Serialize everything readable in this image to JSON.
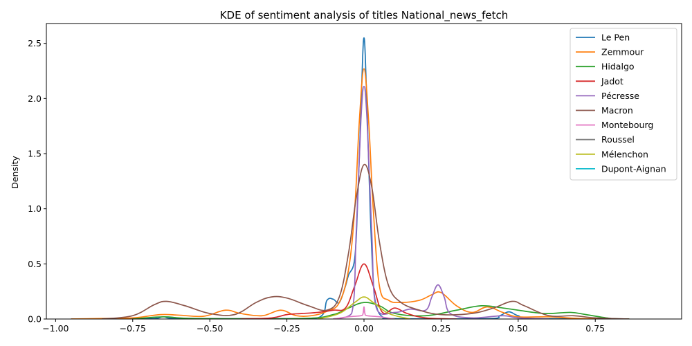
{
  "chart_data": {
    "type": "line",
    "title": "KDE of sentiment analysis of titles National_news_fetch",
    "xlabel": "",
    "ylabel": "Density",
    "xlim": [
      -1.03,
      1.03
    ],
    "ylim": [
      0,
      2.68
    ],
    "x_ticks": [
      -1.0,
      -0.75,
      -0.5,
      -0.25,
      0.0,
      0.25,
      0.5,
      0.75
    ],
    "x_tick_labels": [
      "−1.00",
      "−0.75",
      "−0.50",
      "−0.25",
      "0.00",
      "0.25",
      "0.50",
      "0.75"
    ],
    "y_ticks": [
      0.0,
      0.5,
      1.0,
      1.5,
      2.0,
      2.5
    ],
    "y_tick_labels": [
      "0.0",
      "0.5",
      "1.0",
      "1.5",
      "2.0",
      "2.5"
    ],
    "grid": false,
    "legend_position": "top-right",
    "series": [
      {
        "name": "Le Pen",
        "color": "#1f77b4",
        "points": [
          [
            -0.95,
            0
          ],
          [
            -0.7,
            0.003
          ],
          [
            -0.65,
            0.02
          ],
          [
            -0.6,
            0.005
          ],
          [
            -0.3,
            0.003
          ],
          [
            -0.15,
            0.01
          ],
          [
            -0.12,
            0.17
          ],
          [
            -0.1,
            0.18
          ],
          [
            -0.08,
            0.15
          ],
          [
            -0.06,
            0.3
          ],
          [
            -0.05,
            0.4
          ],
          [
            -0.03,
            0.55
          ],
          [
            -0.02,
            1.1
          ],
          [
            -0.01,
            1.9
          ],
          [
            -0.004,
            2.4
          ],
          [
            0,
            2.55
          ],
          [
            0.004,
            2.4
          ],
          [
            0.01,
            1.9
          ],
          [
            0.02,
            1.0
          ],
          [
            0.03,
            0.35
          ],
          [
            0.04,
            0.12
          ],
          [
            0.06,
            0.02
          ],
          [
            0.1,
            0.003
          ],
          [
            0.4,
            0.003
          ],
          [
            0.44,
            0.03
          ],
          [
            0.47,
            0.065
          ],
          [
            0.5,
            0.03
          ],
          [
            0.55,
            0.005
          ],
          [
            0.86,
            0
          ]
        ]
      },
      {
        "name": "Zemmour",
        "color": "#ff7f0e",
        "points": [
          [
            -0.95,
            0
          ],
          [
            -0.85,
            0.005
          ],
          [
            -0.75,
            0.01
          ],
          [
            -0.66,
            0.04
          ],
          [
            -0.6,
            0.035
          ],
          [
            -0.52,
            0.025
          ],
          [
            -0.45,
            0.08
          ],
          [
            -0.4,
            0.05
          ],
          [
            -0.33,
            0.03
          ],
          [
            -0.27,
            0.08
          ],
          [
            -0.22,
            0.03
          ],
          [
            -0.17,
            0.03
          ],
          [
            -0.12,
            0.07
          ],
          [
            -0.08,
            0.15
          ],
          [
            -0.05,
            0.45
          ],
          [
            -0.03,
            1.0
          ],
          [
            -0.015,
            1.8
          ],
          [
            0,
            2.27
          ],
          [
            0.015,
            1.8
          ],
          [
            0.03,
            1.0
          ],
          [
            0.05,
            0.3
          ],
          [
            0.08,
            0.17
          ],
          [
            0.12,
            0.15
          ],
          [
            0.18,
            0.17
          ],
          [
            0.22,
            0.22
          ],
          [
            0.25,
            0.24
          ],
          [
            0.3,
            0.12
          ],
          [
            0.35,
            0.06
          ],
          [
            0.4,
            0.11
          ],
          [
            0.45,
            0.06
          ],
          [
            0.5,
            0.02
          ],
          [
            0.6,
            0.02
          ],
          [
            0.7,
            0.005
          ],
          [
            0.86,
            0
          ]
        ]
      },
      {
        "name": "Hidalgo",
        "color": "#2ca02c",
        "points": [
          [
            -0.75,
            0
          ],
          [
            -0.65,
            0.02
          ],
          [
            -0.55,
            0.005
          ],
          [
            -0.2,
            0.005
          ],
          [
            -0.1,
            0.04
          ],
          [
            -0.05,
            0.1
          ],
          [
            0,
            0.15
          ],
          [
            0.05,
            0.12
          ],
          [
            0.1,
            0.05
          ],
          [
            0.2,
            0.03
          ],
          [
            0.3,
            0.08
          ],
          [
            0.38,
            0.12
          ],
          [
            0.45,
            0.1
          ],
          [
            0.55,
            0.06
          ],
          [
            0.6,
            0.05
          ],
          [
            0.67,
            0.06
          ],
          [
            0.72,
            0.04
          ],
          [
            0.8,
            0.005
          ],
          [
            0.86,
            0
          ]
        ]
      },
      {
        "name": "Jadot",
        "color": "#d62728",
        "points": [
          [
            -0.4,
            0
          ],
          [
            -0.3,
            0.01
          ],
          [
            -0.25,
            0.04
          ],
          [
            -0.2,
            0.05
          ],
          [
            -0.15,
            0.06
          ],
          [
            -0.1,
            0.08
          ],
          [
            -0.06,
            0.1
          ],
          [
            -0.03,
            0.3
          ],
          [
            0,
            0.5
          ],
          [
            0.03,
            0.3
          ],
          [
            0.06,
            0.06
          ],
          [
            0.1,
            0.1
          ],
          [
            0.14,
            0.05
          ],
          [
            0.2,
            0.01
          ],
          [
            0.3,
            0
          ]
        ]
      },
      {
        "name": "Pécresse",
        "color": "#9467bd",
        "points": [
          [
            -0.1,
            0
          ],
          [
            -0.04,
            0.05
          ],
          [
            -0.025,
            0.8
          ],
          [
            -0.01,
            1.8
          ],
          [
            0,
            2.11
          ],
          [
            0.01,
            1.8
          ],
          [
            0.025,
            0.8
          ],
          [
            0.04,
            0.1
          ],
          [
            0.1,
            0.06
          ],
          [
            0.15,
            0.09
          ],
          [
            0.2,
            0.08
          ],
          [
            0.22,
            0.2
          ],
          [
            0.24,
            0.31
          ],
          [
            0.26,
            0.2
          ],
          [
            0.28,
            0.05
          ],
          [
            0.35,
            0.01
          ],
          [
            0.45,
            0.03
          ],
          [
            0.5,
            0.01
          ],
          [
            0.6,
            0
          ]
        ]
      },
      {
        "name": "Macron",
        "color": "#8c564b",
        "points": [
          [
            -0.85,
            0
          ],
          [
            -0.75,
            0.03
          ],
          [
            -0.68,
            0.13
          ],
          [
            -0.64,
            0.16
          ],
          [
            -0.58,
            0.12
          ],
          [
            -0.5,
            0.05
          ],
          [
            -0.42,
            0.04
          ],
          [
            -0.35,
            0.15
          ],
          [
            -0.3,
            0.2
          ],
          [
            -0.25,
            0.19
          ],
          [
            -0.18,
            0.12
          ],
          [
            -0.12,
            0.08
          ],
          [
            -0.08,
            0.2
          ],
          [
            -0.05,
            0.6
          ],
          [
            -0.025,
            1.1
          ],
          [
            0,
            1.4
          ],
          [
            0.025,
            1.2
          ],
          [
            0.05,
            0.7
          ],
          [
            0.08,
            0.3
          ],
          [
            0.12,
            0.15
          ],
          [
            0.18,
            0.08
          ],
          [
            0.25,
            0.04
          ],
          [
            0.35,
            0.05
          ],
          [
            0.42,
            0.1
          ],
          [
            0.48,
            0.16
          ],
          [
            0.52,
            0.12
          ],
          [
            0.6,
            0.03
          ],
          [
            0.68,
            0.03
          ],
          [
            0.75,
            0.01
          ],
          [
            0.86,
            0
          ]
        ]
      },
      {
        "name": "Montebourg",
        "color": "#e377c2",
        "points": [
          [
            -0.1,
            0
          ],
          [
            -0.05,
            0.02
          ],
          [
            -0.01,
            0.03
          ],
          [
            -0.003,
            0.05
          ],
          [
            0,
            0.11
          ],
          [
            0.003,
            0.05
          ],
          [
            0.01,
            0.03
          ],
          [
            0.05,
            0.02
          ],
          [
            0.1,
            0
          ]
        ]
      },
      {
        "name": "Roussel",
        "color": "#7f7f7f",
        "points": []
      },
      {
        "name": "Mélenchon",
        "color": "#bcbd22",
        "points": [
          [
            -0.15,
            0
          ],
          [
            -0.08,
            0.05
          ],
          [
            -0.03,
            0.15
          ],
          [
            0,
            0.2
          ],
          [
            0.03,
            0.15
          ],
          [
            0.08,
            0.05
          ],
          [
            0.15,
            0
          ]
        ]
      },
      {
        "name": "Dupont-Aignan",
        "color": "#17becf",
        "points": []
      }
    ]
  }
}
